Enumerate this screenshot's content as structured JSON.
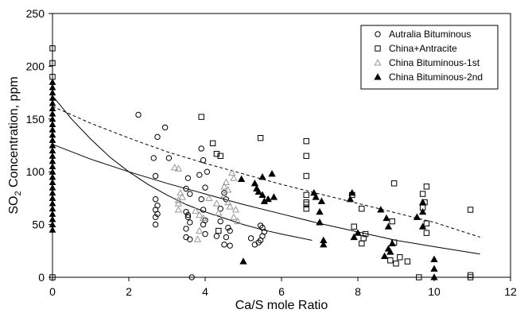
{
  "chart_data": {
    "type": "scatter",
    "xlabel": "Ca/S mole Ratio",
    "ylabel_parts": [
      "SO",
      "2",
      " Concentration, ppm"
    ],
    "xlim": [
      0,
      12
    ],
    "ylim": [
      0,
      250
    ],
    "xticks": [
      0,
      2,
      4,
      6,
      8,
      10,
      12
    ],
    "yticks": [
      0,
      50,
      100,
      150,
      200,
      250
    ],
    "grid": false,
    "legend_position": "top-right",
    "series": [
      {
        "name": "Autralia Bituminous",
        "marker": "circle-open",
        "color": "#000000",
        "points": [
          [
            2.25,
            154
          ],
          [
            2.95,
            142
          ],
          [
            3.05,
            113
          ],
          [
            2.65,
            113
          ],
          [
            2.75,
            133
          ],
          [
            2.7,
            96
          ],
          [
            2.7,
            74
          ],
          [
            2.75,
            68
          ],
          [
            2.7,
            64
          ],
          [
            2.75,
            60
          ],
          [
            2.7,
            57
          ],
          [
            2.7,
            50
          ],
          [
            3.55,
            94
          ],
          [
            3.5,
            84
          ],
          [
            3.6,
            79
          ],
          [
            3.5,
            62
          ],
          [
            3.55,
            59
          ],
          [
            3.55,
            57
          ],
          [
            3.6,
            52
          ],
          [
            3.5,
            46
          ],
          [
            3.5,
            38
          ],
          [
            3.6,
            36
          ],
          [
            3.65,
            0
          ],
          [
            3.9,
            122
          ],
          [
            3.95,
            111
          ],
          [
            4.05,
            100
          ],
          [
            3.85,
            97
          ],
          [
            4.0,
            85
          ],
          [
            3.9,
            74
          ],
          [
            3.95,
            64
          ],
          [
            4.0,
            54
          ],
          [
            3.95,
            50
          ],
          [
            4.0,
            41
          ],
          [
            4.3,
            39
          ],
          [
            4.4,
            53
          ],
          [
            4.4,
            65
          ],
          [
            4.5,
            80
          ],
          [
            4.55,
            74
          ],
          [
            4.6,
            47
          ],
          [
            4.65,
            44
          ],
          [
            4.55,
            38
          ],
          [
            4.5,
            31
          ],
          [
            4.65,
            30
          ],
          [
            5.2,
            37
          ],
          [
            5.3,
            31
          ],
          [
            5.4,
            33
          ],
          [
            5.45,
            35
          ],
          [
            5.5,
            39
          ],
          [
            5.55,
            43
          ],
          [
            5.5,
            47
          ],
          [
            5.45,
            49
          ]
        ]
      },
      {
        "name": "China+Antracite",
        "marker": "square-open",
        "color": "#000000",
        "points": [
          [
            0,
            217
          ],
          [
            0,
            203
          ],
          [
            0,
            190
          ],
          [
            0,
            0
          ],
          [
            3.9,
            152
          ],
          [
            4.2,
            127
          ],
          [
            4.4,
            115
          ],
          [
            4.3,
            117
          ],
          [
            4.35,
            44
          ],
          [
            5.45,
            132
          ],
          [
            6.65,
            129
          ],
          [
            6.65,
            115
          ],
          [
            6.65,
            96
          ],
          [
            6.65,
            78
          ],
          [
            6.65,
            71
          ],
          [
            6.65,
            69
          ],
          [
            6.65,
            65
          ],
          [
            7.85,
            78
          ],
          [
            7.9,
            48
          ],
          [
            8.1,
            65
          ],
          [
            8.15,
            37
          ],
          [
            8.2,
            41
          ],
          [
            8.1,
            32
          ],
          [
            8.95,
            89
          ],
          [
            8.9,
            53
          ],
          [
            8.95,
            33
          ],
          [
            8.85,
            16
          ],
          [
            9.0,
            13
          ],
          [
            9.1,
            19
          ],
          [
            9.3,
            15
          ],
          [
            9.6,
            0
          ],
          [
            9.7,
            79
          ],
          [
            9.75,
            71
          ],
          [
            9.7,
            66
          ],
          [
            9.8,
            86
          ],
          [
            9.8,
            51
          ],
          [
            9.8,
            42
          ],
          [
            10.95,
            64
          ],
          [
            10.95,
            2
          ],
          [
            10.95,
            0
          ]
        ]
      },
      {
        "name": "China Bituminous-1st",
        "marker": "triangle-open",
        "color": "#999999",
        "points": [
          [
            3.2,
            104
          ],
          [
            3.3,
            103
          ],
          [
            3.35,
            80
          ],
          [
            3.3,
            73
          ],
          [
            3.4,
            76
          ],
          [
            3.3,
            70
          ],
          [
            3.3,
            64
          ],
          [
            3.75,
            63
          ],
          [
            3.85,
            59
          ],
          [
            3.95,
            56
          ],
          [
            3.85,
            44
          ],
          [
            3.8,
            36
          ],
          [
            4.1,
            75
          ],
          [
            4.3,
            70
          ],
          [
            4.35,
            61
          ],
          [
            4.5,
            86
          ],
          [
            4.5,
            78
          ],
          [
            4.55,
            90
          ],
          [
            4.6,
            83
          ],
          [
            4.6,
            71
          ],
          [
            4.65,
            67
          ],
          [
            4.7,
            99
          ],
          [
            4.75,
            94
          ],
          [
            4.8,
            64
          ],
          [
            4.85,
            53
          ],
          [
            4.75,
            57
          ]
        ]
      },
      {
        "name": "China Bituminous-2nd",
        "marker": "triangle-filled",
        "color": "#000000",
        "points": [
          [
            4.95,
            93
          ],
          [
            5.0,
            15
          ],
          [
            5.3,
            89
          ],
          [
            5.35,
            84
          ],
          [
            5.4,
            81
          ],
          [
            5.5,
            95
          ],
          [
            5.5,
            78
          ],
          [
            5.55,
            72
          ],
          [
            5.65,
            74
          ],
          [
            5.75,
            98
          ],
          [
            5.8,
            76
          ],
          [
            6.85,
            80
          ],
          [
            6.9,
            76
          ],
          [
            7.0,
            62
          ],
          [
            7.05,
            72
          ],
          [
            7.0,
            52
          ],
          [
            7.1,
            35
          ],
          [
            7.1,
            31
          ],
          [
            7.8,
            74
          ],
          [
            7.85,
            80
          ],
          [
            7.9,
            38
          ],
          [
            8.0,
            42
          ],
          [
            8.6,
            64
          ],
          [
            8.7,
            20
          ],
          [
            8.75,
            56
          ],
          [
            8.8,
            48
          ],
          [
            8.9,
            32
          ],
          [
            8.8,
            27
          ],
          [
            8.85,
            24
          ],
          [
            9.55,
            57
          ],
          [
            9.7,
            62
          ],
          [
            9.7,
            48
          ],
          [
            9.7,
            71
          ],
          [
            10.0,
            17
          ],
          [
            10.0,
            8
          ],
          [
            10.0,
            0
          ]
        ]
      }
    ],
    "fits": [
      {
        "style": "solid",
        "x": [
          0,
          0.5,
          1,
          1.5,
          2,
          2.5,
          3,
          3.5,
          4,
          4.5,
          5,
          5.5,
          6,
          6.8
        ],
        "y": [
          172,
          150,
          131,
          114,
          100,
          88,
          78,
          69,
          62,
          56,
          50,
          45,
          41,
          35
        ]
      },
      {
        "style": "solid",
        "x": [
          0,
          1,
          2,
          3,
          4,
          5,
          6,
          7,
          8,
          9,
          10,
          11.2
        ],
        "y": [
          126,
          112,
          100,
          89,
          79,
          69,
          60,
          51,
          43,
          35,
          29,
          22
        ]
      },
      {
        "style": "dashed",
        "x": [
          0,
          1,
          2,
          3,
          4,
          5,
          6,
          7,
          8,
          9,
          10,
          11.2
        ],
        "y": [
          162,
          146,
          132,
          119,
          108,
          98,
          88,
          79,
          70,
          61,
          52,
          38
        ]
      }
    ],
    "y_axis_strip": {
      "x": 0,
      "values": [
        45,
        50,
        55,
        60,
        65,
        70,
        75,
        80,
        85,
        90,
        95,
        100,
        105,
        110,
        115,
        120,
        125,
        130,
        135,
        140,
        145,
        150,
        155,
        160,
        165,
        170,
        175,
        180,
        185
      ]
    }
  }
}
